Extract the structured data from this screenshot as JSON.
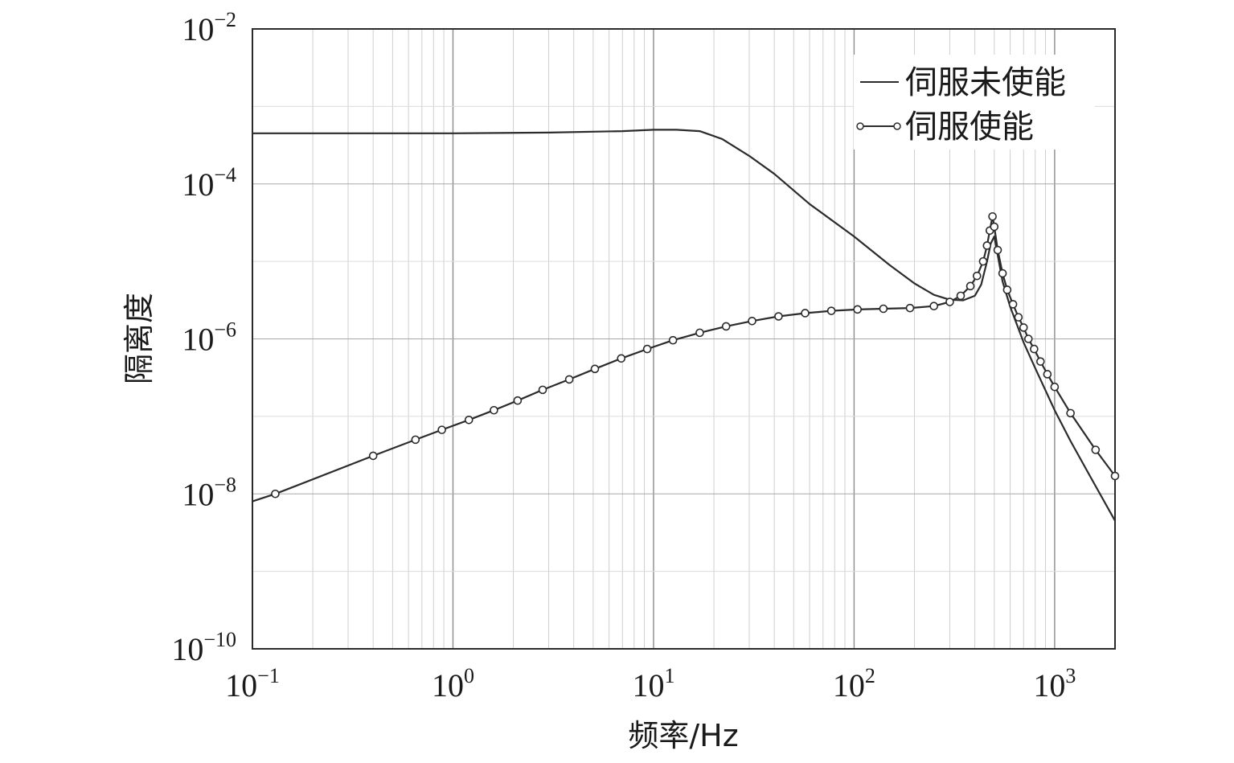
{
  "chart_data": {
    "type": "line",
    "title": "",
    "xlabel": "频率/Hz",
    "ylabel": "隔离度",
    "x_scale": "log",
    "y_scale": "log",
    "xlim": [
      0.1,
      2000
    ],
    "ylim": [
      1e-10,
      0.01
    ],
    "grid": true,
    "legend_position": "top-right",
    "x_ticks": [
      {
        "value": 0.1,
        "base": "10",
        "exp": "−1"
      },
      {
        "value": 1,
        "base": "10",
        "exp": "0"
      },
      {
        "value": 10,
        "base": "10",
        "exp": "1"
      },
      {
        "value": 100,
        "base": "10",
        "exp": "2"
      },
      {
        "value": 1000,
        "base": "10",
        "exp": "3"
      }
    ],
    "y_ticks": [
      {
        "value": 1e-10,
        "base": "10",
        "exp": "−10"
      },
      {
        "value": 1e-08,
        "base": "10",
        "exp": "−8"
      },
      {
        "value": 1e-06,
        "base": "10",
        "exp": "−6"
      },
      {
        "value": 0.0001,
        "base": "10",
        "exp": "−4"
      },
      {
        "value": 0.01,
        "base": "10",
        "exp": "−2"
      }
    ],
    "series": [
      {
        "name": "伺服未使能",
        "marker": "none",
        "x": [
          0.1,
          0.3,
          1,
          3,
          7,
          10,
          13,
          17,
          22,
          30,
          40,
          60,
          100,
          150,
          200,
          250,
          300,
          350,
          400,
          430,
          460,
          480,
          500,
          520,
          550,
          600,
          700,
          800,
          1000,
          1200,
          1500,
          2000
        ],
        "y": [
          0.00045,
          0.00045,
          0.00045,
          0.00046,
          0.00048,
          0.0005,
          0.0005,
          0.00048,
          0.00038,
          0.00023,
          0.000135,
          5.5e-05,
          2.1e-05,
          9e-06,
          5.2e-06,
          3.7e-06,
          3.2e-06,
          3.15e-06,
          3.6e-06,
          5e-06,
          1e-05,
          1.7e-05,
          2.1e-05,
          1.2e-05,
          5.5e-06,
          2.6e-06,
          9e-07,
          4.2e-07,
          1.2e-07,
          4.8e-08,
          1.7e-08,
          4.5e-09
        ]
      },
      {
        "name": "伺服使能",
        "marker": "circle",
        "x": [
          0.1,
          0.13,
          0.4,
          0.65,
          0.88,
          1.2,
          1.6,
          2.1,
          2.8,
          3.8,
          5.1,
          6.9,
          9.3,
          12.5,
          17,
          23,
          31,
          42,
          57,
          77,
          104,
          140,
          190,
          250,
          300,
          340,
          380,
          410,
          440,
          460,
          475,
          490,
          500,
          520,
          550,
          580,
          620,
          660,
          700,
          740,
          790,
          850,
          920,
          1000,
          1200,
          1600,
          2000
        ],
        "y": [
          8e-09,
          1e-08,
          3.1e-08,
          5e-08,
          6.7e-08,
          9e-08,
          1.2e-07,
          1.6e-07,
          2.2e-07,
          3e-07,
          4.1e-07,
          5.6e-07,
          7.4e-07,
          9.6e-07,
          1.2e-06,
          1.45e-06,
          1.7e-06,
          1.95e-06,
          2.15e-06,
          2.3e-06,
          2.4e-06,
          2.45e-06,
          2.5e-06,
          2.65e-06,
          3e-06,
          3.6e-06,
          4.8e-06,
          6.5e-06,
          1e-05,
          1.6e-05,
          2.5e-05,
          3.8e-05,
          2.8e-05,
          1.4e-05,
          7e-06,
          4.3e-06,
          2.8e-06,
          1.9e-06,
          1.4e-06,
          1e-06,
          7.4e-07,
          5.1e-07,
          3.5e-07,
          2.4e-07,
          1.1e-07,
          3.7e-08,
          1.7e-08
        ]
      }
    ]
  }
}
